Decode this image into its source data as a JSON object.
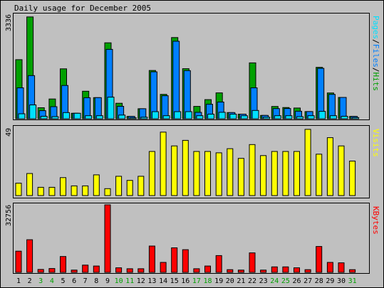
{
  "title": "Daily usage for December 2005",
  "colors": {
    "background": "#c0c0c0",
    "hits": "#00a000",
    "files": "#0080ff",
    "pages": "#00e0ff",
    "visits": "#ffff00",
    "kbytes": "#ff0000",
    "weekend_label": "#00a000",
    "weekday_label": "#000000"
  },
  "chart_data": [
    {
      "type": "bar",
      "panel": "hits-files-pages",
      "scale_max_label": "3336",
      "legend": [
        "Pages",
        "/",
        "Files",
        "/",
        "Hits"
      ],
      "categories": [
        "1",
        "2",
        "3",
        "4",
        "5",
        "6",
        "7",
        "8",
        "9",
        "10",
        "11",
        "12",
        "13",
        "14",
        "15",
        "16",
        "17",
        "18",
        "19",
        "20",
        "21",
        "22",
        "23",
        "24",
        "25",
        "26",
        "27",
        "28",
        "29",
        "30",
        "31"
      ],
      "weekend_days": [
        3,
        4,
        10,
        11,
        17,
        18,
        24,
        25,
        31
      ],
      "ylim": [
        0,
        3336
      ],
      "series": [
        {
          "name": "Hits",
          "values": [
            1911,
            3295,
            356,
            640,
            1614,
            178,
            890,
            683,
            2458,
            502,
            76,
            324,
            1562,
            788,
            2628,
            1619,
            401,
            618,
            837,
            200,
            150,
            1809,
            108,
            398,
            364,
            347,
            233,
            1664,
            835,
            690,
            76
          ]
        },
        {
          "name": "Files",
          "values": [
            1000,
            1397,
            262,
            390,
            1076,
            178,
            680,
            683,
            2245,
            402,
            76,
            324,
            1519,
            745,
            2507,
            1557,
            207,
            470,
            540,
            200,
            150,
            1000,
            108,
            329,
            331,
            244,
            233,
            1632,
            790,
            690,
            76
          ]
        },
        {
          "name": "Pages",
          "values": [
            160,
            449,
            80,
            70,
            200,
            178,
            100,
            100,
            700,
            120,
            30,
            50,
            230,
            100,
            230,
            230,
            100,
            150,
            210,
            150,
            100,
            270,
            50,
            100,
            100,
            70,
            100,
            240,
            100,
            80,
            40
          ]
        }
      ]
    },
    {
      "type": "bar",
      "panel": "visits",
      "scale_max_label": "49",
      "legend": [
        "Visits"
      ],
      "ylim": [
        0,
        49
      ],
      "series": [
        {
          "name": "Visits",
          "values": [
            9,
            16,
            6,
            6,
            13,
            7,
            7,
            15,
            5,
            14,
            11,
            14,
            32,
            46,
            36,
            40,
            32,
            32,
            31,
            34,
            27,
            37,
            29,
            32,
            32,
            32,
            48,
            30,
            42,
            36,
            25
          ]
        }
      ]
    },
    {
      "type": "bar",
      "panel": "kbytes",
      "scale_max_label": "32756",
      "legend": [
        "KBytes"
      ],
      "ylim": [
        0,
        32756
      ],
      "series": [
        {
          "name": "KBytes",
          "values": [
            10260,
            15840,
            1430,
            1870,
            7700,
            1100,
            3520,
            3080,
            32756,
            2200,
            1760,
            1760,
            12760,
            4840,
            11880,
            11000,
            1760,
            3080,
            8140,
            1320,
            1100,
            9460,
            1100,
            2640,
            2640,
            2200,
            1320,
            12540,
            4840,
            4620,
            1320
          ]
        }
      ]
    }
  ]
}
